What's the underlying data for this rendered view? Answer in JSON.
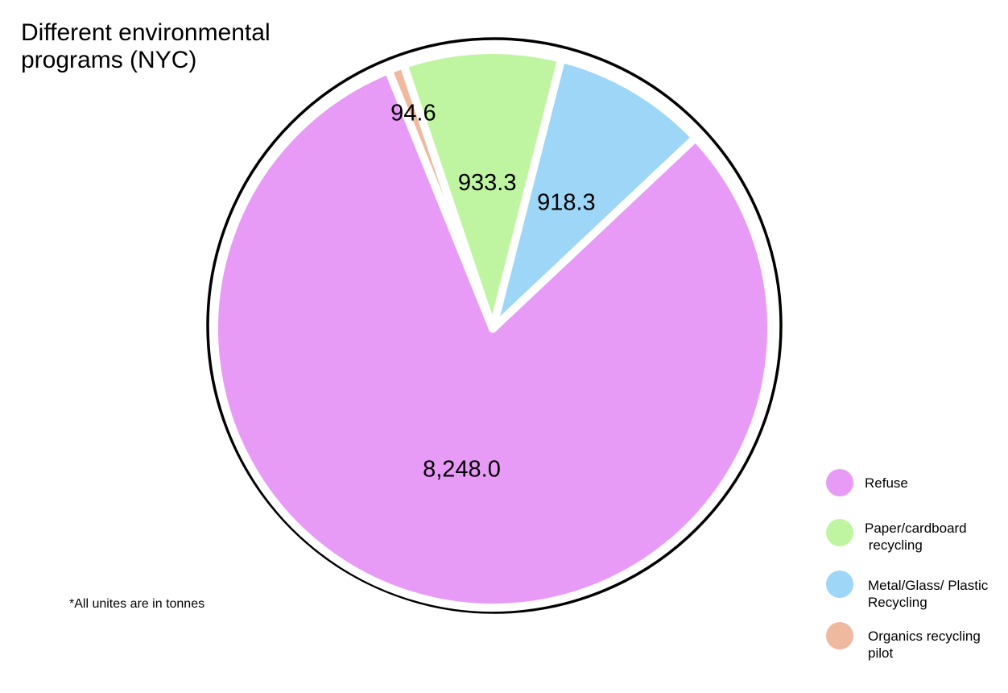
{
  "chart_data": {
    "type": "pie",
    "title_lines": [
      "Different environmental",
      "programs (NYC)"
    ],
    "note": "*All unites are in tonnes",
    "slices": [
      {
        "name": "Refuse",
        "legend_lines": [
          "Refuse"
        ],
        "value": 8248.0,
        "value_label": "8,248.0",
        "color": "#e89bf6"
      },
      {
        "name": "Paper/cardboard recycling",
        "legend_lines": [
          "Paper/cardboard",
          " recycling"
        ],
        "value": 933.3,
        "value_label": "933.3",
        "color": "#bff5a0"
      },
      {
        "name": "Metal/Glass/ Plastic Recycling",
        "legend_lines": [
          "Metal/Glass/ Plastic",
          "Recycling"
        ],
        "value": 918.3,
        "value_label": "918.3",
        "color": "#9dd6f6"
      },
      {
        "name": "Organics recycling pilot",
        "legend_lines": [
          "Organics recycling",
          "pilot"
        ],
        "value": 94.6,
        "value_label": "94.6",
        "color": "#efb9a0"
      }
    ],
    "legend_position": "bottom-right",
    "outline_color": "#000000"
  }
}
